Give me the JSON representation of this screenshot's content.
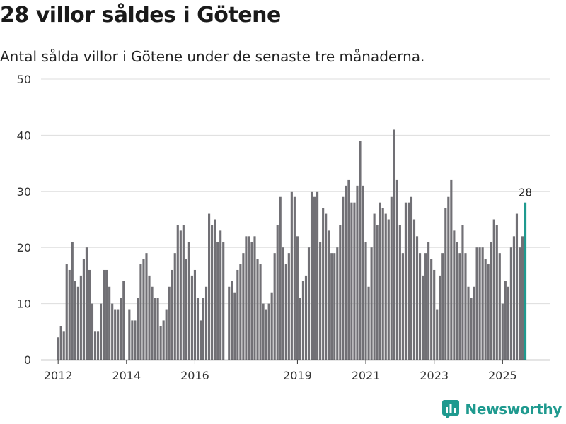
{
  "header": {
    "title": "28 villor såldes i Götene",
    "subtitle": "Antal sålda villor i Götene under de senaste tre månaderna."
  },
  "brand": {
    "name": "Newsworthy",
    "icon": "newsworthy-logo-icon"
  },
  "colors": {
    "bar": "#717075",
    "highlight": "#1f9a8f",
    "grid": "#dddddd",
    "axis": "#333333"
  },
  "chart_data": {
    "type": "bar",
    "title": "28 villor såldes i Götene",
    "subtitle": "Antal sålda villor i Götene under de senaste tre månaderna.",
    "xlabel": "",
    "ylabel": "",
    "ylim": [
      0,
      50
    ],
    "yticks": [
      0,
      10,
      20,
      30,
      40,
      50
    ],
    "x_start": 2012.0,
    "x_step": 0.08333,
    "xlim": [
      2011.5,
      2026.4
    ],
    "xticks": [
      2012,
      2014,
      2016,
      2019,
      2021,
      2023,
      2025
    ],
    "grid": true,
    "highlight_label": "28",
    "values": [
      4,
      6,
      5,
      17,
      16,
      21,
      14,
      13,
      15,
      18,
      20,
      16,
      10,
      5,
      5,
      10,
      16,
      16,
      13,
      10,
      9,
      9,
      11,
      14,
      0,
      9,
      7,
      7,
      11,
      17,
      18,
      19,
      15,
      13,
      11,
      11,
      6,
      7,
      9,
      13,
      16,
      19,
      24,
      23,
      24,
      18,
      21,
      15,
      16,
      11,
      7,
      11,
      13,
      26,
      24,
      25,
      21,
      23,
      21,
      0,
      13,
      14,
      12,
      16,
      17,
      19,
      22,
      22,
      21,
      22,
      18,
      17,
      10,
      9,
      10,
      12,
      19,
      24,
      29,
      20,
      17,
      19,
      30,
      29,
      22,
      11,
      14,
      15,
      20,
      30,
      29,
      30,
      21,
      27,
      26,
      23,
      19,
      19,
      20,
      24,
      29,
      31,
      32,
      28,
      28,
      31,
      39,
      31,
      21,
      13,
      20,
      26,
      24,
      28,
      27,
      26,
      25,
      29,
      41,
      32,
      24,
      19,
      28,
      28,
      29,
      25,
      22,
      19,
      15,
      19,
      21,
      18,
      16,
      9,
      15,
      19,
      27,
      29,
      32,
      23,
      21,
      19,
      24,
      19,
      13,
      11,
      13,
      20,
      20,
      20,
      18,
      17,
      21,
      25,
      24,
      19,
      10,
      14,
      13,
      20,
      22,
      26,
      20,
      22,
      28
    ]
  }
}
